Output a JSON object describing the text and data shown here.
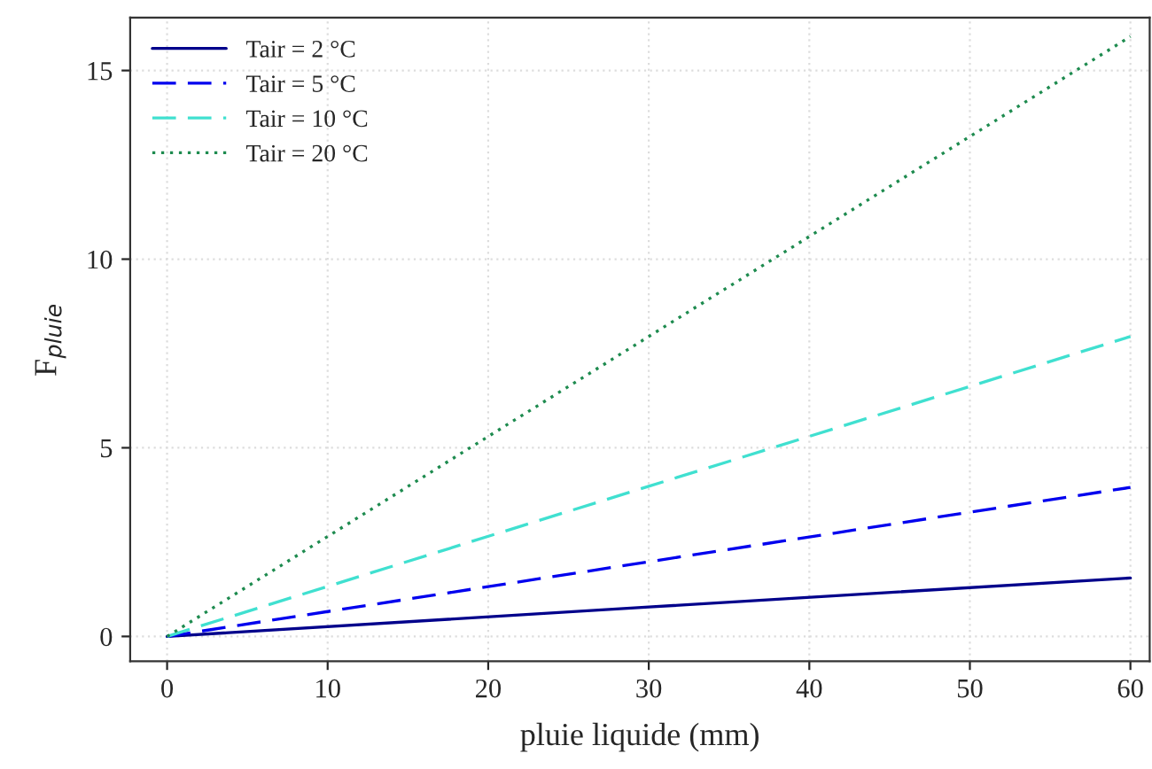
{
  "chart_data": {
    "type": "line",
    "xlabel": "pluie liquide (mm)",
    "ylabel": "F$_{pluie}$",
    "x": [
      0,
      30,
      60
    ],
    "series": [
      {
        "name": "Tair = 2 °C",
        "color": "#00008b",
        "line_style": "solid",
        "values": [
          0,
          0.78,
          1.55
        ]
      },
      {
        "name": "Tair = 5 °C",
        "color": "#0000ee",
        "line_style": "dashed",
        "values": [
          0,
          1.98,
          3.95
        ]
      },
      {
        "name": "Tair = 10 °C",
        "color": "#40e0d0",
        "line_style": "dashed",
        "values": [
          0,
          3.98,
          7.95
        ]
      },
      {
        "name": "Tair = 20 °C",
        "color": "#1e8b4f",
        "line_style": "dotted",
        "values": [
          0,
          7.95,
          15.9
        ]
      }
    ],
    "xlim": [
      -2.3,
      61.2
    ],
    "ylim": [
      -0.66,
      16.4
    ],
    "xticks": [
      0,
      10,
      20,
      30,
      40,
      50,
      60
    ],
    "yticks": [
      0,
      5,
      10,
      15
    ],
    "grid": true,
    "legend": "top left",
    "marker": "none"
  }
}
